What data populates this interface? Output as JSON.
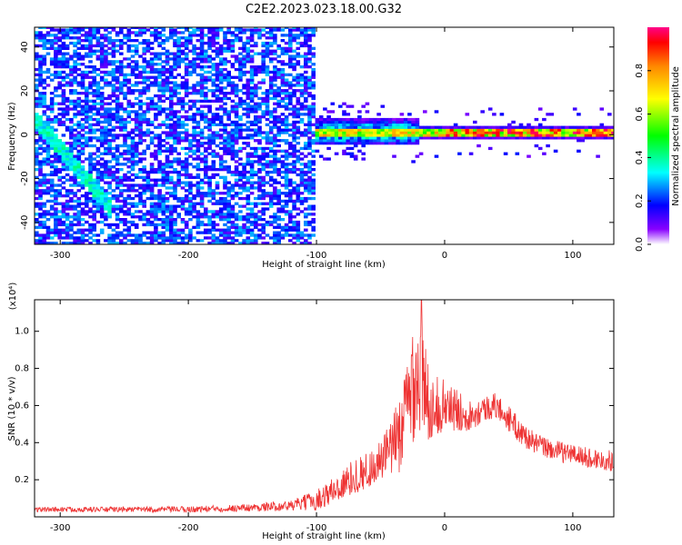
{
  "title": "C2E2.2023.023.18.00.G32",
  "chart_data": [
    {
      "type": "heatmap",
      "xlabel": "Height of straight line (km)",
      "ylabel": "Frequency (Hz)",
      "xlim": [
        -320,
        132
      ],
      "ylim": [
        -50,
        49
      ],
      "xticks": [
        -300,
        -200,
        -100,
        0,
        100
      ],
      "xtick_labels": [
        "-300",
        "-200",
        "-100",
        "0",
        "100"
      ],
      "yticks": [
        -40,
        -20,
        0,
        20,
        40
      ],
      "ytick_labels": [
        "-40",
        "-20",
        "0",
        "20",
        "40"
      ],
      "colorbar": {
        "label": "Normalized spectral amplitude",
        "range": [
          0,
          1
        ],
        "ticks": [
          0.0,
          0.2,
          0.4,
          0.6,
          0.8
        ],
        "tick_labels": [
          "0.0",
          "0.2",
          "0.4",
          "0.6",
          "0.8"
        ],
        "colormap": "rainbow",
        "colors": [
          "#ffffff",
          "#8800ff",
          "#0000ff",
          "#00ffff",
          "#00ff00",
          "#ffff00",
          "#ff8800",
          "#ff0000"
        ]
      },
      "features": [
        {
          "region_x": [
            -320,
            -102
          ],
          "pattern": "broadband noise",
          "amplitude": [
            0.1,
            0.3
          ]
        },
        {
          "region_x": [
            -320,
            -260
          ],
          "pattern": "descending band",
          "freq_start": 6,
          "freq_end": -35,
          "amplitude": 0.35
        },
        {
          "region_x": [
            -102,
            132
          ],
          "pattern": "narrow signal band",
          "freq_center": 0.5,
          "amplitude": [
            0.5,
            1.0
          ]
        }
      ]
    },
    {
      "type": "line",
      "xlabel": "Height of straight line (km)",
      "ylabel": "SNR (10 * v/v)",
      "yscale_label": "(x10⁴)",
      "xlim": [
        -320,
        132
      ],
      "ylim": [
        0,
        1.17
      ],
      "xticks": [
        -300,
        -200,
        -100,
        0,
        100
      ],
      "xtick_labels": [
        "-300",
        "-200",
        "-100",
        "0",
        "100"
      ],
      "yticks": [
        0.2,
        0.4,
        0.6,
        0.8,
        1.0
      ],
      "ytick_labels": [
        "0.2",
        "0.4",
        "0.6",
        "0.8",
        "1.0"
      ],
      "series": [
        {
          "color": "#ee3333",
          "x": [
            -320,
            -300,
            -250,
            -200,
            -150,
            -120,
            -100,
            -90,
            -80,
            -70,
            -60,
            -50,
            -40,
            -30,
            -25,
            -20,
            -15,
            -10,
            0,
            10,
            20,
            30,
            40,
            50,
            60,
            70,
            80,
            90,
            100,
            110,
            120,
            132
          ],
          "y": [
            0.04,
            0.04,
            0.04,
            0.04,
            0.05,
            0.06,
            0.09,
            0.13,
            0.17,
            0.22,
            0.25,
            0.3,
            0.38,
            0.55,
            0.75,
            0.8,
            0.62,
            0.6,
            0.6,
            0.57,
            0.55,
            0.58,
            0.6,
            0.53,
            0.45,
            0.4,
            0.37,
            0.35,
            0.34,
            0.32,
            0.31,
            0.3
          ],
          "noise_amplitude": [
            0.01,
            0.01,
            0.01,
            0.012,
            0.015,
            0.02,
            0.04,
            0.05,
            0.06,
            0.07,
            0.07,
            0.08,
            0.12,
            0.2,
            0.25,
            0.28,
            0.22,
            0.12,
            0.1,
            0.08,
            0.06,
            0.05,
            0.05,
            0.05,
            0.05,
            0.04,
            0.04,
            0.04,
            0.04,
            0.04,
            0.04,
            0.04
          ],
          "peak": {
            "x": -18,
            "y": 1.17
          }
        }
      ]
    }
  ]
}
